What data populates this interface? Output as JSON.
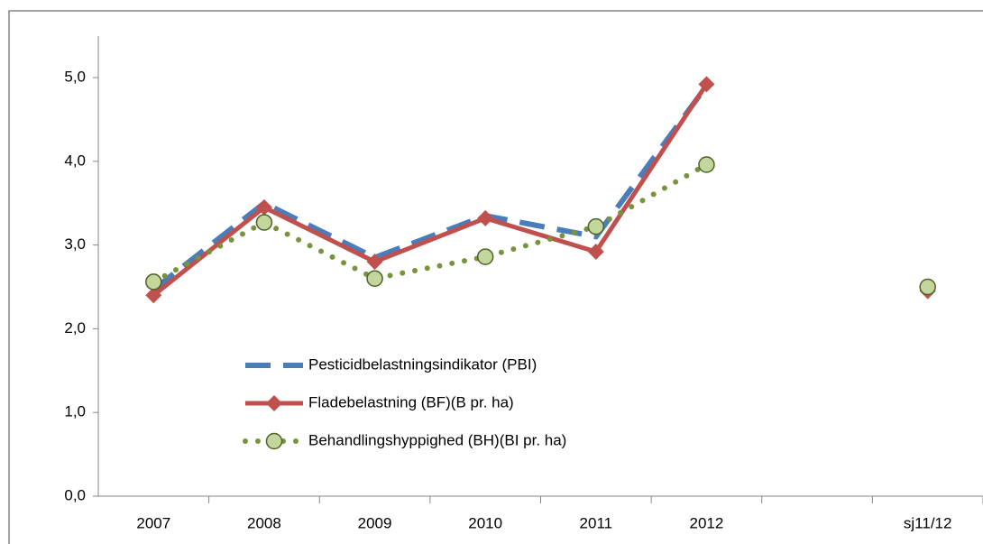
{
  "chart_data": {
    "type": "line",
    "categories": [
      "2007",
      "2008",
      "2009",
      "2010",
      "2011",
      "2012",
      null,
      "sj11/12"
    ],
    "series": [
      {
        "name": "Pesticidbelastningsindikator (PBI)",
        "color": "#4a7ebb",
        "style": "dashed",
        "marker": "none",
        "values": [
          2.47,
          3.5,
          2.85,
          3.35,
          3.1,
          4.9,
          null,
          null
        ]
      },
      {
        "name": "Fladebelastning (BF)(B pr. ha)",
        "color": "#c0504d",
        "style": "solid",
        "marker": "diamond",
        "values": [
          2.4,
          3.45,
          2.8,
          3.32,
          2.92,
          4.92,
          null,
          2.45
        ]
      },
      {
        "name": "Behandlingshyppighed (BH)(BI pr. ha)",
        "color": "#77933c",
        "style": "dotted",
        "marker": "circle",
        "values": [
          2.56,
          3.27,
          2.6,
          2.86,
          3.22,
          3.96,
          null,
          2.5
        ]
      }
    ],
    "ylim": [
      0,
      5
    ],
    "yticks": [
      {
        "value": 0,
        "label": "0,0"
      },
      {
        "value": 1,
        "label": "1,0"
      },
      {
        "value": 2,
        "label": "2,0"
      },
      {
        "value": 3,
        "label": "3,0"
      },
      {
        "value": 4,
        "label": "4,0"
      },
      {
        "value": 5,
        "label": "5,0"
      }
    ],
    "grid": false
  }
}
